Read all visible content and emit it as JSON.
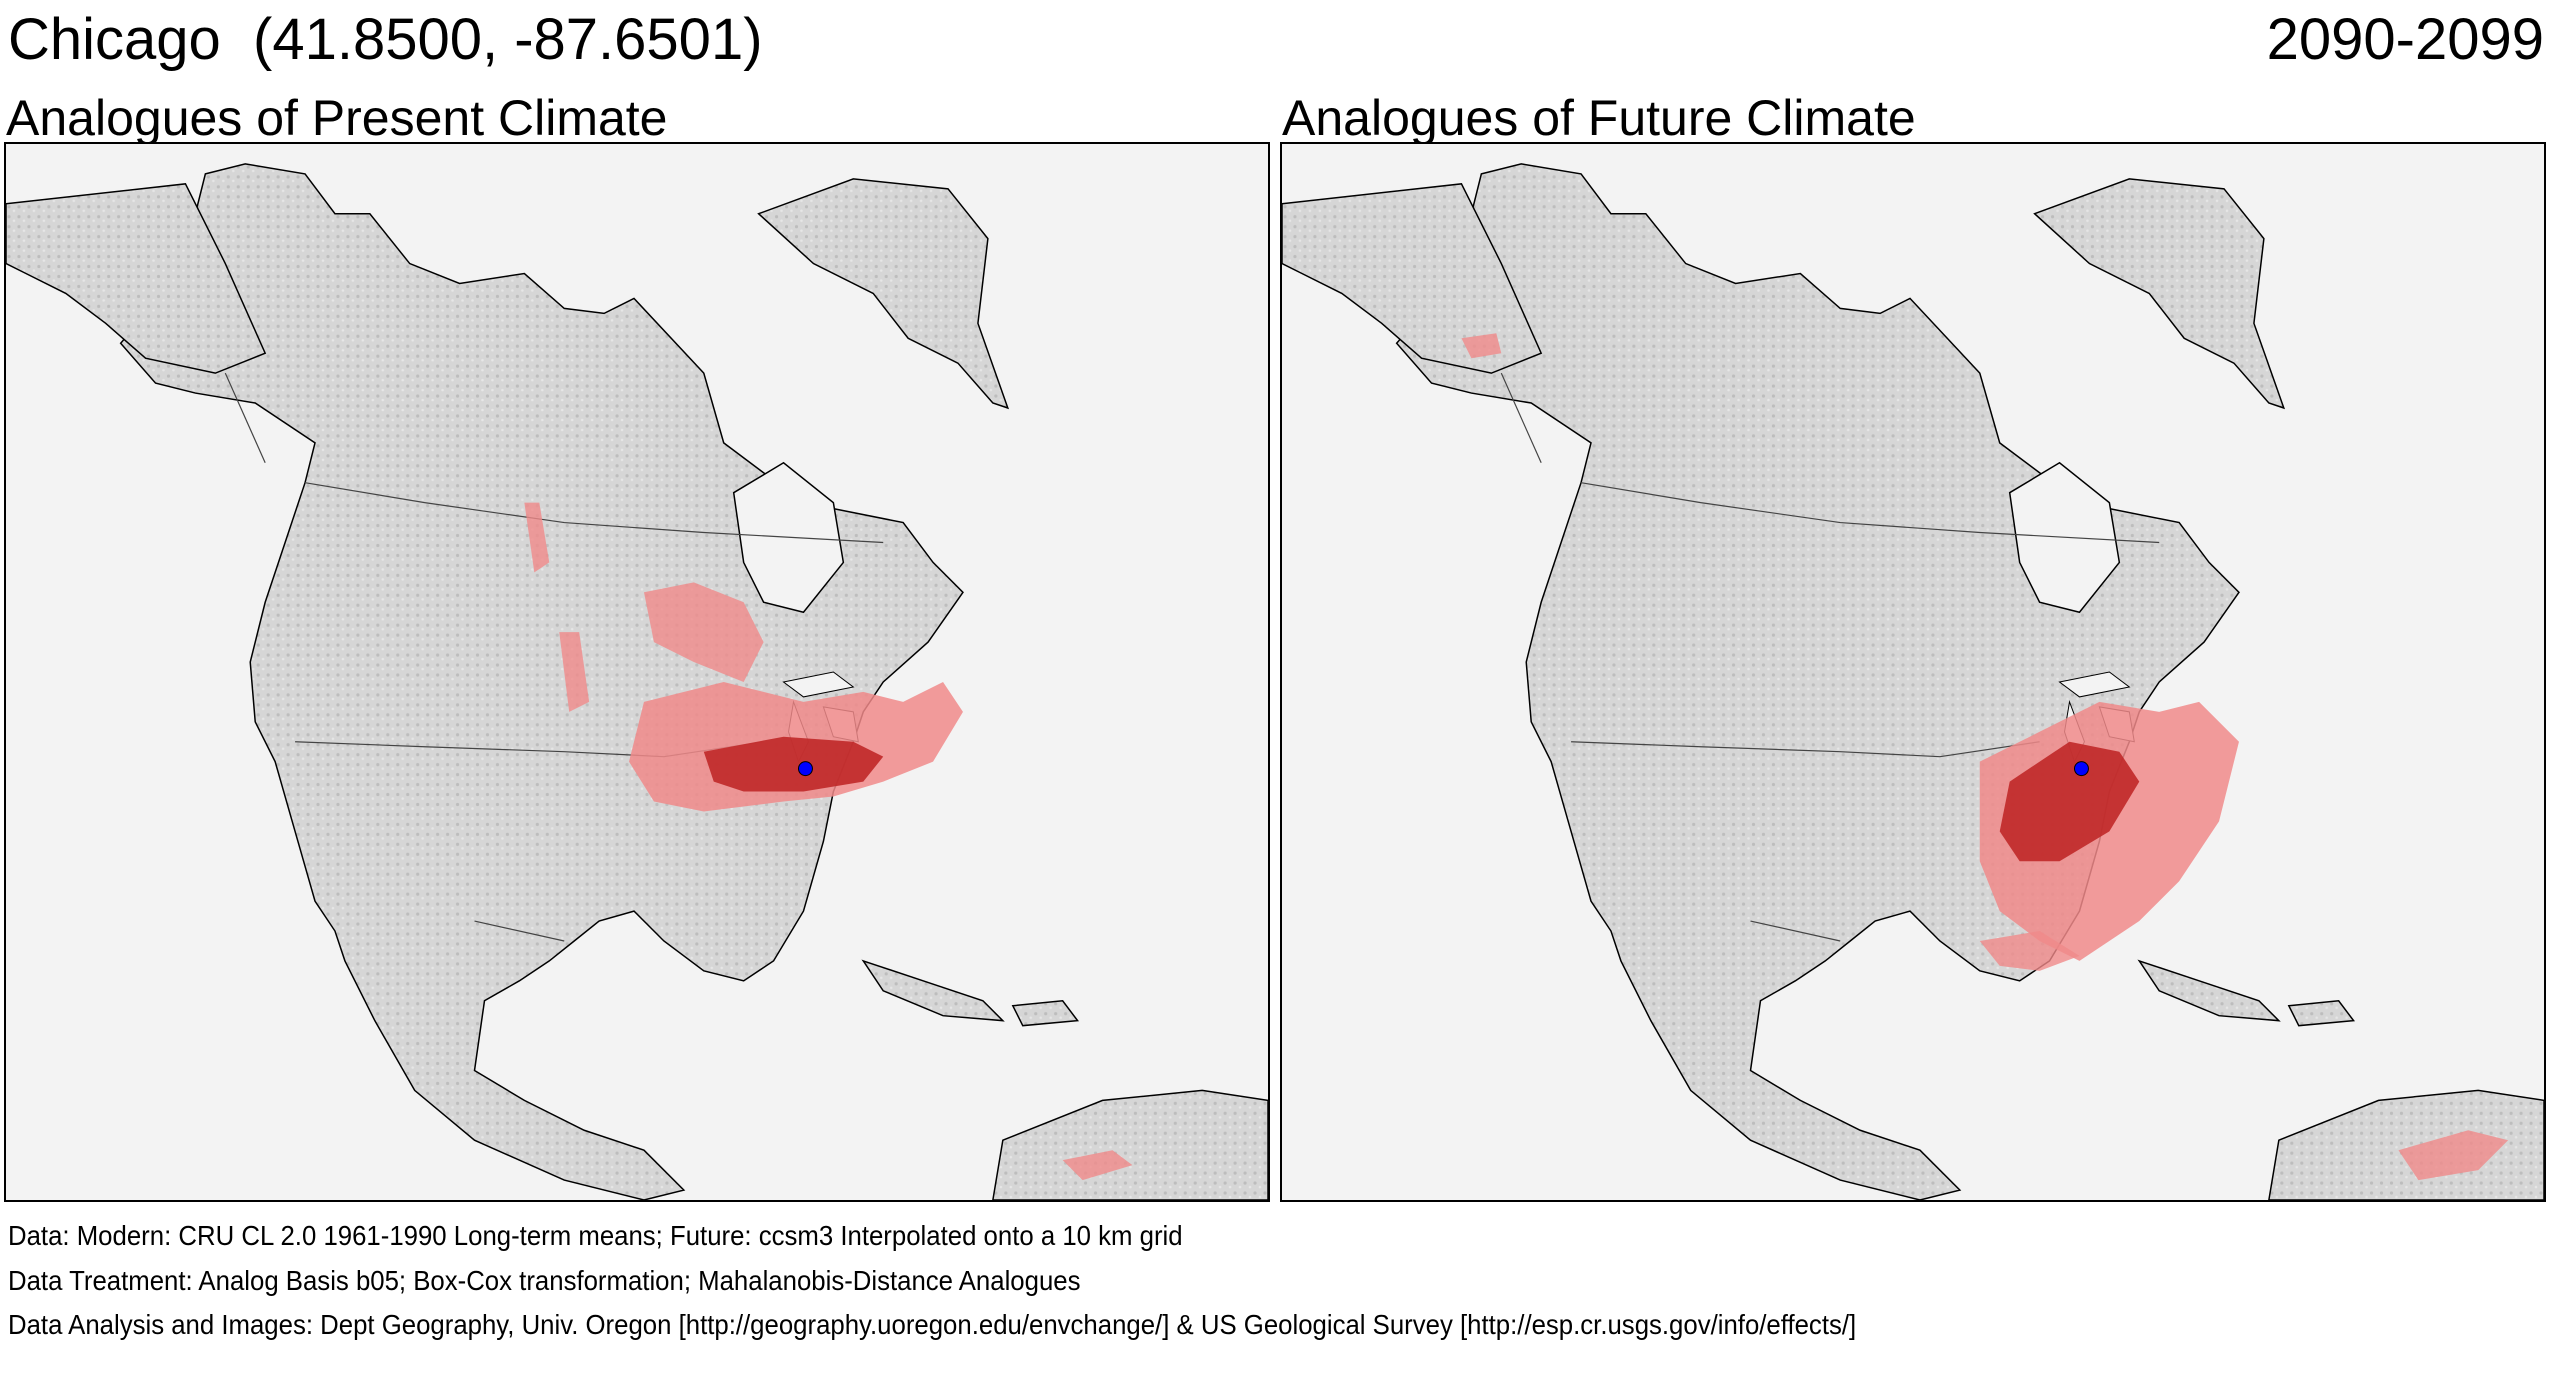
{
  "header": {
    "title": "Chicago  (41.8500, -87.6501)",
    "period": "2090-2099"
  },
  "panels": [
    {
      "title": "Analogues of Present Climate"
    },
    {
      "title": "Analogues of Future Climate"
    }
  ],
  "footer": {
    "data": "Data:  Modern: CRU CL 2.0 1961-1990 Long-term means; Future: ccsm3 Interpolated onto a 10 km grid",
    "treatment": "Data Treatment:  Analog Basis b05; Box-Cox transformation; Mahalanobis-Distance Analogues",
    "analysis": "Data Analysis and Images:  Dept Geography, Univ. Oregon [http://geography.uoregon.edu/envchange/] & US Geological Survey [http://esp.cr.usgs.gov/info/effects/]"
  },
  "colors": {
    "analogue_light": "#f08a8a",
    "analogue_dark": "#c02828",
    "location_marker": "#0000ff",
    "land": "#d2d2d2",
    "water": "#f3f3f3"
  }
}
